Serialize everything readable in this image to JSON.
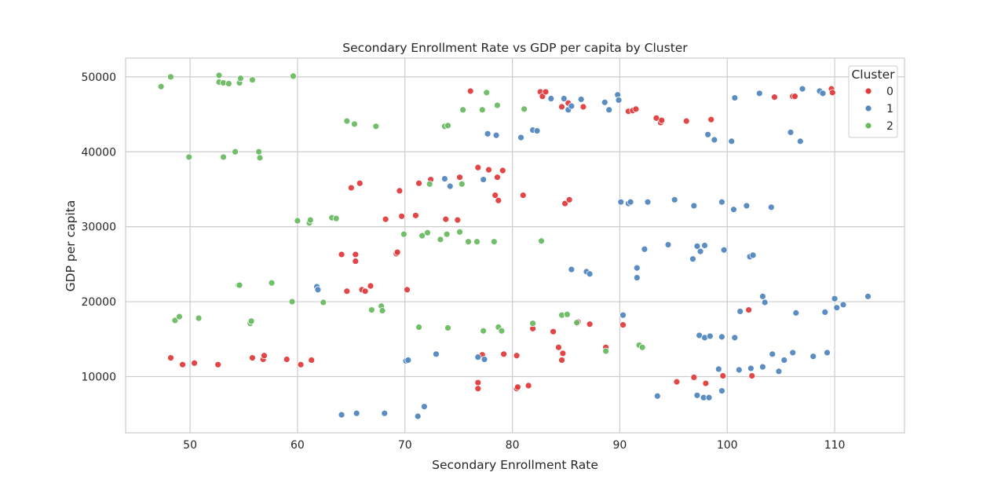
{
  "chart_data": {
    "type": "scatter",
    "title": "Secondary Enrollment Rate vs GDP per capita by Cluster",
    "xlabel": "Secondary Enrollment Rate",
    "ylabel": "GDP per capita",
    "xlim": [
      44,
      116.5
    ],
    "ylim": [
      2500,
      52500
    ],
    "xticks": [
      "50",
      "60",
      "70",
      "80",
      "90",
      "100",
      "110"
    ],
    "yticks": [
      "10000",
      "20000",
      "30000",
      "40000",
      "50000"
    ],
    "grid": true,
    "legend": {
      "title": "Cluster",
      "placement": "top-right"
    },
    "series": [
      {
        "name": "0",
        "color": "#e03c3c",
        "points": [
          [
            48.2,
            12500
          ],
          [
            49.3,
            11600
          ],
          [
            50.4,
            11800
          ],
          [
            52.6,
            11600
          ],
          [
            55.8,
            12500
          ],
          [
            56.8,
            12300
          ],
          [
            56.9,
            12800
          ],
          [
            59.0,
            12300
          ],
          [
            60.3,
            11600
          ],
          [
            61.3,
            12200
          ],
          [
            64.1,
            26300
          ],
          [
            64.6,
            21400
          ],
          [
            65.0,
            35200
          ],
          [
            65.4,
            26300
          ],
          [
            65.4,
            25400
          ],
          [
            65.8,
            35800
          ],
          [
            66.0,
            21600
          ],
          [
            66.3,
            21400
          ],
          [
            66.8,
            22100
          ],
          [
            68.2,
            31000
          ],
          [
            69.2,
            26400
          ],
          [
            69.3,
            26600
          ],
          [
            69.5,
            34800
          ],
          [
            69.7,
            31400
          ],
          [
            70.2,
            21600
          ],
          [
            71.0,
            31500
          ],
          [
            71.3,
            35800
          ],
          [
            72.4,
            36300
          ],
          [
            73.8,
            31000
          ],
          [
            75.1,
            36600
          ],
          [
            74.9,
            30900
          ],
          [
            76.8,
            37900
          ],
          [
            77.8,
            37600
          ],
          [
            78.4,
            34200
          ],
          [
            78.6,
            36600
          ],
          [
            78.7,
            33500
          ],
          [
            79.1,
            37500
          ],
          [
            76.1,
            48100
          ],
          [
            82.6,
            48000
          ],
          [
            82.8,
            47400
          ],
          [
            83.1,
            48000
          ],
          [
            84.6,
            46000
          ],
          [
            85.2,
            46500
          ],
          [
            86.6,
            46000
          ],
          [
            81.0,
            34200
          ],
          [
            84.9,
            33100
          ],
          [
            85.3,
            33600
          ],
          [
            76.8,
            9200
          ],
          [
            76.8,
            8400
          ],
          [
            77.2,
            12900
          ],
          [
            79.2,
            13000
          ],
          [
            80.4,
            8400
          ],
          [
            80.4,
            12800
          ],
          [
            80.5,
            8600
          ],
          [
            81.5,
            8800
          ],
          [
            81.9,
            16400
          ],
          [
            83.8,
            16000
          ],
          [
            84.3,
            13900
          ],
          [
            84.6,
            12200
          ],
          [
            84.7,
            13100
          ],
          [
            86.0,
            17100
          ],
          [
            86.1,
            17300
          ],
          [
            87.2,
            17000
          ],
          [
            88.7,
            13900
          ],
          [
            90.3,
            16900
          ],
          [
            90.8,
            45400
          ],
          [
            91.2,
            45500
          ],
          [
            91.5,
            45700
          ],
          [
            93.4,
            44500
          ],
          [
            93.8,
            43900
          ],
          [
            93.9,
            44200
          ],
          [
            96.2,
            44100
          ],
          [
            98.5,
            44300
          ],
          [
            95.3,
            9300
          ],
          [
            96.9,
            9900
          ],
          [
            98.0,
            9100
          ],
          [
            99.6,
            10100
          ],
          [
            102.0,
            18900
          ],
          [
            102.3,
            10100
          ],
          [
            104.4,
            47300
          ],
          [
            106.1,
            47400
          ],
          [
            106.3,
            47400
          ],
          [
            109.7,
            48400
          ],
          [
            109.8,
            47900
          ]
        ]
      },
      {
        "name": "1",
        "color": "#5287c0",
        "points": [
          [
            61.8,
            22000
          ],
          [
            61.9,
            21600
          ],
          [
            64.1,
            4900
          ],
          [
            65.5,
            5100
          ],
          [
            68.1,
            5100
          ],
          [
            70.1,
            12100
          ],
          [
            70.3,
            12200
          ],
          [
            71.2,
            4700
          ],
          [
            71.8,
            6000
          ],
          [
            72.9,
            13000
          ],
          [
            73.7,
            36400
          ],
          [
            74.2,
            35400
          ],
          [
            77.3,
            36300
          ],
          [
            76.8,
            12600
          ],
          [
            77.4,
            12300
          ],
          [
            77.7,
            42400
          ],
          [
            78.5,
            42200
          ],
          [
            80.8,
            41900
          ],
          [
            81.9,
            42900
          ],
          [
            82.3,
            42800
          ],
          [
            83.6,
            47100
          ],
          [
            84.8,
            47100
          ],
          [
            85.2,
            45600
          ],
          [
            85.5,
            46100
          ],
          [
            86.4,
            47000
          ],
          [
            88.6,
            46600
          ],
          [
            89.0,
            45600
          ],
          [
            89.8,
            47600
          ],
          [
            89.9,
            46900
          ],
          [
            85.5,
            24300
          ],
          [
            86.9,
            24000
          ],
          [
            87.2,
            23700
          ],
          [
            90.1,
            33300
          ],
          [
            90.8,
            33100
          ],
          [
            91.0,
            33300
          ],
          [
            92.6,
            33300
          ],
          [
            95.1,
            33600
          ],
          [
            96.9,
            32800
          ],
          [
            99.5,
            33300
          ],
          [
            100.6,
            32300
          ],
          [
            101.8,
            32800
          ],
          [
            104.1,
            32600
          ],
          [
            91.6,
            24500
          ],
          [
            91.6,
            23200
          ],
          [
            92.3,
            27000
          ],
          [
            94.5,
            27600
          ],
          [
            96.8,
            25700
          ],
          [
            97.2,
            27400
          ],
          [
            97.5,
            26700
          ],
          [
            97.9,
            27500
          ],
          [
            99.7,
            26900
          ],
          [
            102.1,
            26000
          ],
          [
            102.4,
            26200
          ],
          [
            90.3,
            18200
          ],
          [
            93.5,
            7400
          ],
          [
            97.2,
            7500
          ],
          [
            97.4,
            15500
          ],
          [
            97.9,
            15200
          ],
          [
            98.4,
            15400
          ],
          [
            99.2,
            11000
          ],
          [
            99.5,
            15300
          ],
          [
            99.5,
            8100
          ],
          [
            97.8,
            7200
          ],
          [
            98.3,
            7200
          ],
          [
            100.7,
            15200
          ],
          [
            101.1,
            10900
          ],
          [
            101.2,
            18700
          ],
          [
            102.2,
            11100
          ],
          [
            103.3,
            11300
          ],
          [
            103.3,
            20700
          ],
          [
            103.5,
            19900
          ],
          [
            104.2,
            13000
          ],
          [
            104.8,
            10700
          ],
          [
            105.3,
            12200
          ],
          [
            106.1,
            13200
          ],
          [
            106.4,
            18500
          ],
          [
            108.0,
            12700
          ],
          [
            109.1,
            18600
          ],
          [
            109.3,
            13200
          ],
          [
            110.0,
            20400
          ],
          [
            110.2,
            19200
          ],
          [
            110.8,
            19600
          ],
          [
            113.1,
            20700
          ],
          [
            98.2,
            42300
          ],
          [
            98.8,
            41600
          ],
          [
            100.4,
            41400
          ],
          [
            100.7,
            47200
          ],
          [
            103.0,
            47800
          ],
          [
            105.9,
            42600
          ],
          [
            106.8,
            41400
          ],
          [
            107.0,
            48400
          ],
          [
            108.6,
            48100
          ],
          [
            108.9,
            47800
          ]
        ]
      },
      {
        "name": "2",
        "color": "#6aba62",
        "points": [
          [
            47.3,
            48700
          ],
          [
            48.2,
            50000
          ],
          [
            52.7,
            50200
          ],
          [
            52.7,
            49300
          ],
          [
            53.1,
            49200
          ],
          [
            53.6,
            49100
          ],
          [
            54.6,
            49200
          ],
          [
            54.7,
            49800
          ],
          [
            55.8,
            49600
          ],
          [
            59.6,
            50100
          ],
          [
            49.9,
            39300
          ],
          [
            53.1,
            39300
          ],
          [
            54.2,
            40000
          ],
          [
            56.4,
            40000
          ],
          [
            56.5,
            39200
          ],
          [
            48.6,
            17500
          ],
          [
            49.0,
            18000
          ],
          [
            50.8,
            17800
          ],
          [
            54.5,
            22200
          ],
          [
            54.6,
            22200
          ],
          [
            55.6,
            17100
          ],
          [
            55.7,
            17400
          ],
          [
            57.6,
            22500
          ],
          [
            59.5,
            20000
          ],
          [
            60.0,
            30800
          ],
          [
            61.1,
            30500
          ],
          [
            61.2,
            30900
          ],
          [
            62.4,
            19900
          ],
          [
            63.2,
            31200
          ],
          [
            63.6,
            31100
          ],
          [
            64.6,
            44100
          ],
          [
            65.3,
            43700
          ],
          [
            67.3,
            43400
          ],
          [
            66.9,
            18900
          ],
          [
            67.8,
            19400
          ],
          [
            67.9,
            18800
          ],
          [
            69.9,
            29000
          ],
          [
            71.3,
            16600
          ],
          [
            71.6,
            28800
          ],
          [
            72.1,
            29200
          ],
          [
            72.3,
            35700
          ],
          [
            73.3,
            28300
          ],
          [
            73.7,
            43400
          ],
          [
            73.9,
            29000
          ],
          [
            74.0,
            43500
          ],
          [
            74.0,
            16500
          ],
          [
            75.1,
            29300
          ],
          [
            75.3,
            35700
          ],
          [
            75.9,
            28000
          ],
          [
            76.7,
            28000
          ],
          [
            77.3,
            16100
          ],
          [
            77.2,
            45600
          ],
          [
            75.4,
            45600
          ],
          [
            77.6,
            47900
          ],
          [
            78.3,
            28000
          ],
          [
            78.6,
            46200
          ],
          [
            78.7,
            16600
          ],
          [
            79.0,
            16100
          ],
          [
            81.1,
            45700
          ],
          [
            81.9,
            17100
          ],
          [
            82.7,
            28100
          ],
          [
            84.6,
            18200
          ],
          [
            85.1,
            18300
          ],
          [
            86.0,
            17200
          ],
          [
            88.7,
            13400
          ],
          [
            91.8,
            14200
          ],
          [
            92.1,
            13900
          ]
        ]
      }
    ]
  }
}
